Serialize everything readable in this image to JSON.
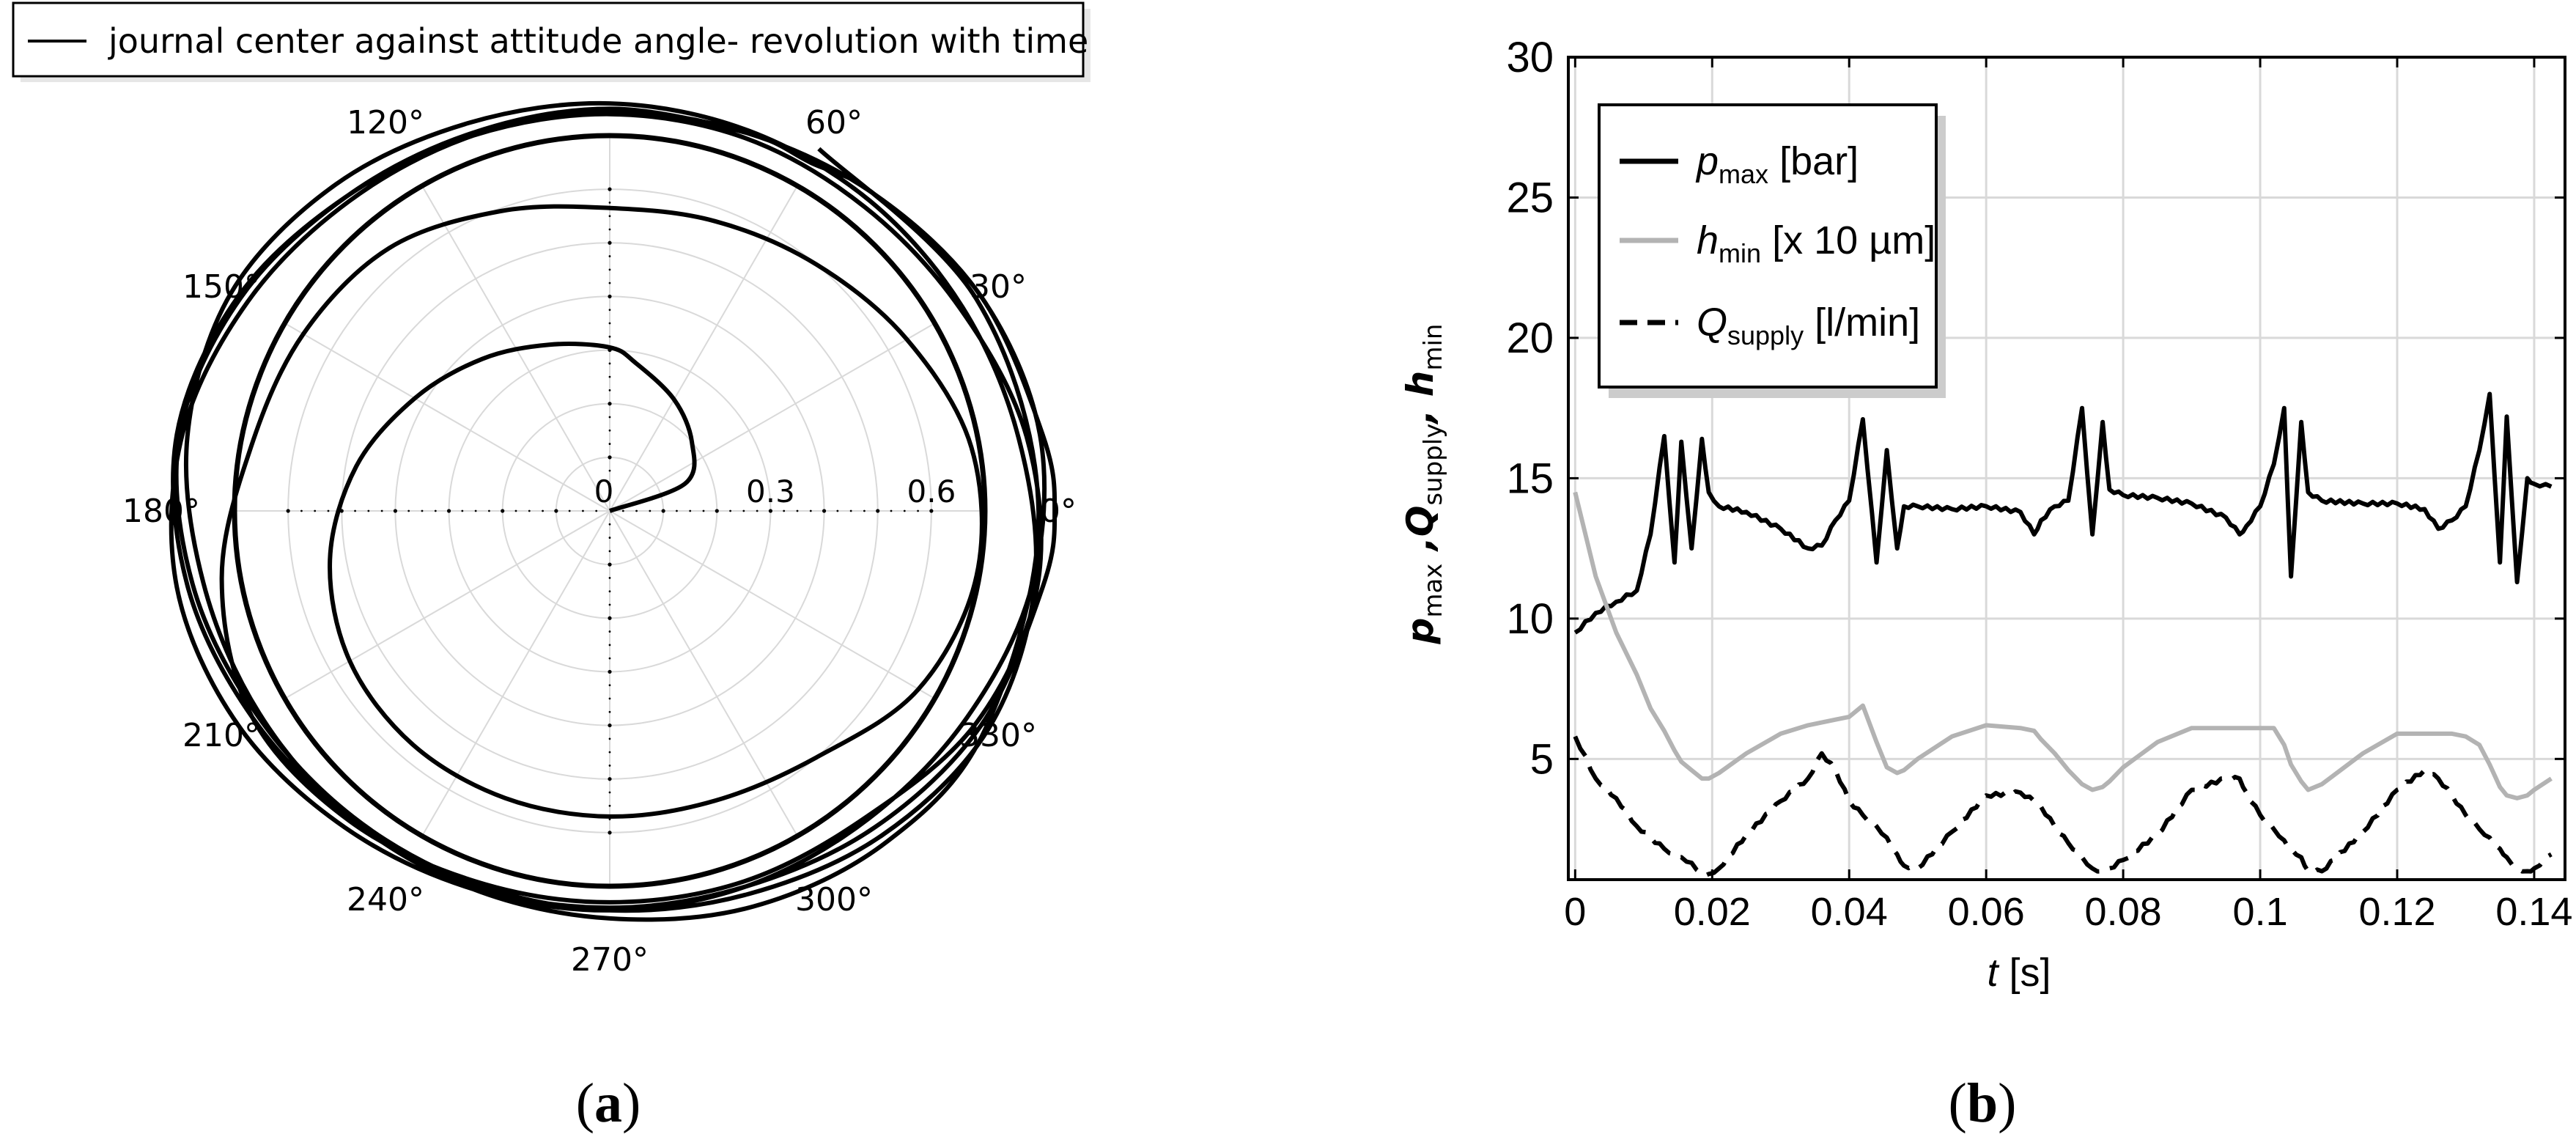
{
  "figure_labels": {
    "a": "(a)",
    "b": "(b)",
    "a_letter": "a",
    "b_letter": "b"
  },
  "chart_data": [
    {
      "type": "line",
      "subtype": "polar",
      "panel": "a",
      "title": "",
      "legend": {
        "placement": "top-left",
        "entries": [
          "journal center against attitude angle- revolution with time"
        ]
      },
      "angle_ticks_deg": [
        0,
        30,
        60,
        120,
        150,
        180,
        210,
        240,
        270,
        300,
        330
      ],
      "angle_tick_labels": [
        "0°",
        "30°",
        "60°",
        "120°",
        "150°",
        "180°",
        "210°",
        "240°",
        "270°",
        "300°",
        "330°"
      ],
      "radial_ticks": [
        0,
        0.3,
        0.6
      ],
      "radial_tick_labels": [
        "0",
        "0.3",
        "0.6"
      ],
      "rlim": [
        0,
        0.7
      ],
      "grid": true,
      "series": [
        {
          "name": "journal center against attitude angle- revolution with time",
          "theta_deg": [
            0,
            20,
            40,
            60,
            80,
            90,
            110,
            130,
            150,
            170,
            190,
            210,
            230,
            250,
            270,
            290,
            310,
            330,
            350,
            370,
            390,
            410,
            430,
            450,
            470,
            490,
            510,
            530,
            550,
            570,
            590,
            610,
            630,
            650,
            670,
            690,
            710,
            730,
            750,
            770,
            790,
            810,
            830,
            850,
            870,
            890,
            910,
            930,
            950,
            970,
            990,
            1010,
            1030,
            1050,
            1070,
            1080,
            1090,
            1110,
            1130,
            1150,
            1170,
            1190,
            1210,
            1230,
            1250,
            1270,
            1290,
            1310,
            1330,
            1350,
            1370,
            1390,
            1410,
            1430,
            1450,
            1470,
            1490,
            1500,
            1510,
            1530,
            1550,
            1570,
            1590,
            1610,
            1630,
            1650,
            1670,
            1690,
            1710,
            1730,
            1750,
            1770,
            1790,
            1810,
            1830,
            1850,
            1870,
            1890,
            1910,
            1930,
            1950,
            1970,
            1990,
            2010,
            2030,
            2050,
            2070,
            2090,
            2110,
            2130,
            2160,
            2190,
            2220
          ],
          "r": [
            0.0,
            0.15,
            0.2,
            0.24,
            0.28,
            0.305,
            0.33,
            0.37,
            0.42,
            0.48,
            0.53,
            0.56,
            0.57,
            0.57,
            0.57,
            0.575,
            0.6,
            0.665,
            0.695,
            0.685,
            0.64,
            0.6,
            0.575,
            0.565,
            0.595,
            0.64,
            0.66,
            0.68,
            0.735,
            0.77,
            0.755,
            0.735,
            0.73,
            0.735,
            0.745,
            0.79,
            0.81,
            0.79,
            0.755,
            0.74,
            0.74,
            0.74,
            0.745,
            0.765,
            0.8,
            0.82,
            0.8,
            0.77,
            0.75,
            0.745,
            0.74,
            0.745,
            0.77,
            0.8,
            0.82,
            0.83,
            0.82,
            0.8,
            0.77,
            0.75,
            0.745,
            0.745,
            0.755,
            0.78,
            0.81,
            0.82,
            0.8,
            0.77,
            0.75,
            0.745,
            0.745,
            0.75,
            0.77,
            0.8,
            0.815,
            0.8,
            0.77,
            0.75,
            0.75,
            0.75,
            0.75,
            0.765,
            0.795,
            0.815,
            0.79,
            0.76,
            0.745,
            0.74,
            0.745,
            0.76,
            0.79,
            0.815,
            0.805,
            0.775,
            0.76,
            0.755,
            0.755,
            0.76,
            0.77,
            0.795,
            0.815,
            0.8,
            0.77,
            0.755,
            0.75,
            0.75,
            0.76,
            0.785,
            0.805,
            0.81,
            0.8,
            0.79,
            0.78
          ]
        }
      ]
    },
    {
      "type": "line",
      "panel": "b",
      "title": "",
      "xlabel": "t [s]",
      "ylabel": "p_max ,Q_supply, h_min",
      "ylabel_parts": {
        "p": "p",
        "p_sub": "max",
        "q": " ,Q",
        "q_sub": "supply",
        "h": ", h",
        "h_sub": "min"
      },
      "xlim": [
        -0.001,
        0.1445
      ],
      "ylim": [
        0.7,
        30
      ],
      "xticks": [
        0,
        0.02,
        0.04,
        0.06,
        0.08,
        0.1,
        0.12,
        0.14
      ],
      "xtick_labels": [
        "0",
        "0.02",
        "0.04",
        "0.06",
        "0.08",
        "0.1",
        "0.12",
        "0.14"
      ],
      "yticks": [
        5,
        10,
        15,
        20,
        25,
        30
      ],
      "ytick_labels": [
        "5",
        "10",
        "15",
        "20",
        "25",
        "30"
      ],
      "grid": true,
      "legend": {
        "placement": "top-left",
        "entries": [
          {
            "main": "p",
            "sub": "max",
            "unit": " [bar]",
            "style": "solid-black"
          },
          {
            "main": "h",
            "sub": "min",
            "unit": " [x 10 µm]",
            "style": "solid-gray"
          },
          {
            "main": "Q",
            "sub": "supply",
            "unit": " [l/min]",
            "style": "dashed-black"
          }
        ]
      },
      "x": [
        0,
        0.003,
        0.006,
        0.009,
        0.011,
        0.013,
        0.0145,
        0.0155,
        0.017,
        0.0185,
        0.0195,
        0.021,
        0.025,
        0.03,
        0.034,
        0.036,
        0.038,
        0.04,
        0.042,
        0.044,
        0.0455,
        0.047,
        0.048,
        0.05,
        0.055,
        0.06,
        0.065,
        0.067,
        0.068,
        0.07,
        0.072,
        0.074,
        0.0755,
        0.077,
        0.078,
        0.08,
        0.085,
        0.09,
        0.095,
        0.097,
        0.098,
        0.1,
        0.102,
        0.1035,
        0.1045,
        0.106,
        0.107,
        0.109,
        0.115,
        0.12,
        0.124,
        0.126,
        0.128,
        0.13,
        0.132,
        0.1335,
        0.135,
        0.136,
        0.1375,
        0.139,
        0.14,
        0.1425
      ],
      "series": [
        {
          "name": "p_max [bar]",
          "color": "#000000",
          "dash": "solid",
          "values": [
            9.5,
            10.2,
            10.6,
            11.0,
            13.0,
            16.5,
            12.0,
            16.3,
            12.5,
            16.4,
            14.5,
            14.0,
            13.8,
            13.2,
            12.5,
            12.6,
            13.5,
            14.2,
            17.1,
            12.0,
            16.0,
            12.5,
            14.0,
            14.0,
            13.9,
            14.0,
            13.8,
            13.0,
            13.5,
            14.0,
            14.2,
            17.5,
            13.0,
            17.0,
            14.6,
            14.4,
            14.3,
            14.1,
            13.6,
            13.0,
            13.3,
            14.0,
            15.5,
            17.5,
            11.5,
            17.0,
            14.5,
            14.2,
            14.1,
            14.1,
            13.9,
            13.2,
            13.5,
            14.0,
            16.0,
            18.0,
            12.0,
            17.2,
            11.3,
            15.0,
            14.8,
            14.7
          ]
        },
        {
          "name": "h_min [x 10 µm]",
          "color": "#b3b3b3",
          "dash": "solid",
          "values": [
            14.5,
            11.5,
            9.5,
            8.0,
            6.8,
            6.0,
            5.3,
            4.9,
            4.6,
            4.3,
            4.3,
            4.5,
            5.2,
            5.9,
            6.2,
            6.3,
            6.4,
            6.5,
            6.9,
            5.6,
            4.7,
            4.5,
            4.6,
            5.0,
            5.8,
            6.2,
            6.1,
            6.0,
            5.7,
            5.2,
            4.6,
            4.1,
            3.9,
            4.0,
            4.2,
            4.7,
            5.6,
            6.1,
            6.1,
            6.1,
            6.1,
            6.1,
            6.1,
            5.5,
            4.8,
            4.2,
            3.9,
            4.1,
            5.2,
            5.9,
            5.9,
            5.9,
            5.9,
            5.8,
            5.5,
            4.8,
            4.0,
            3.7,
            3.6,
            3.7,
            3.9,
            4.3
          ]
        },
        {
          "name": "Q_supply [l/min]",
          "color": "#000000",
          "dash": "dashed",
          "values": [
            5.8,
            4.3,
            3.6,
            2.6,
            2.2,
            1.8,
            1.6,
            1.5,
            1.3,
            0.9,
            0.9,
            1.1,
            2.3,
            3.5,
            4.3,
            5.2,
            4.6,
            3.5,
            3.0,
            2.6,
            2.2,
            1.6,
            1.2,
            1.1,
            2.4,
            3.7,
            3.8,
            3.5,
            3.3,
            2.6,
            2.0,
            1.5,
            1.1,
            1.0,
            1.1,
            1.4,
            2.3,
            3.9,
            4.3,
            4.3,
            3.8,
            3.0,
            2.5,
            2.1,
            1.8,
            1.5,
            1.0,
            1.0,
            2.4,
            3.9,
            4.6,
            4.3,
            3.7,
            3.0,
            2.5,
            2.2,
            1.8,
            1.5,
            1.1,
            1.0,
            1.1,
            1.6
          ]
        }
      ]
    }
  ]
}
